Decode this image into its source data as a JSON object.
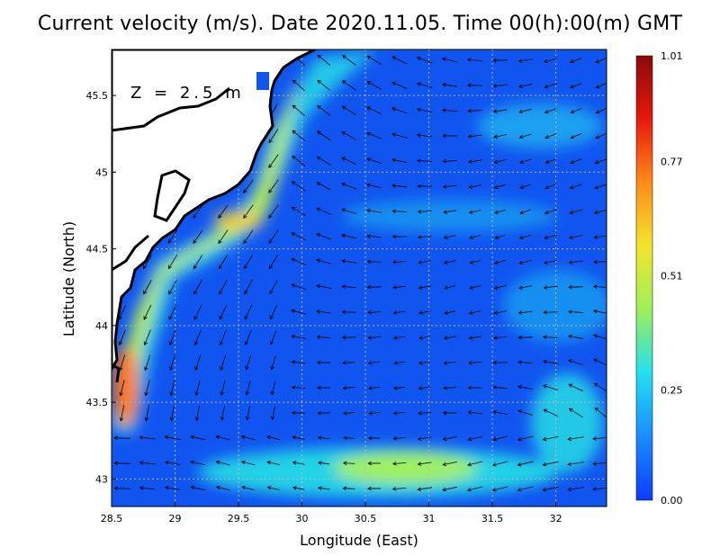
{
  "title": "Current velocity (m/s). Date 2020.11.05. Time 00(h):00(m) GMT",
  "depth_label": "Z = 2.5 m",
  "x_axis": {
    "label": "Longitude (East)",
    "range": [
      28.5,
      32.4
    ],
    "ticks": [
      {
        "value": 28.5,
        "label": "28.5"
      },
      {
        "value": 29,
        "label": "29"
      },
      {
        "value": 29.5,
        "label": "29.5"
      },
      {
        "value": 30,
        "label": "30"
      },
      {
        "value": 30.5,
        "label": "30.5"
      },
      {
        "value": 31,
        "label": "31"
      },
      {
        "value": 31.5,
        "label": "31.5"
      },
      {
        "value": 32,
        "label": "32"
      }
    ]
  },
  "y_axis": {
    "label": "Latitude (North)",
    "range": [
      42.82,
      45.8
    ],
    "ticks": [
      {
        "value": 43,
        "label": "43"
      },
      {
        "value": 43.5,
        "label": "43.5"
      },
      {
        "value": 44,
        "label": "44"
      },
      {
        "value": 44.5,
        "label": "44.5"
      },
      {
        "value": 45,
        "label": "45"
      },
      {
        "value": 45.5,
        "label": "45.5"
      }
    ]
  },
  "colorbar": {
    "min": 0.0,
    "max": 1.01,
    "ticks": [
      {
        "value": 0.0,
        "label": "0.00"
      },
      {
        "value": 0.25,
        "label": "0.25"
      },
      {
        "value": 0.51,
        "label": "0.51"
      },
      {
        "value": 0.77,
        "label": "0.77"
      },
      {
        "value": 1.01,
        "label": "1.01"
      }
    ],
    "colors": [
      "#0b3cff",
      "#1a8cff",
      "#22e0f0",
      "#9cf05a",
      "#f2e62a",
      "#ff8c1a",
      "#e8180c",
      "#8a0a0a"
    ]
  },
  "colors": {
    "land": "#ffffff",
    "coast": "#000000",
    "water_base": "#1155f0",
    "grid": "#bbbbbb"
  },
  "grid": true
}
